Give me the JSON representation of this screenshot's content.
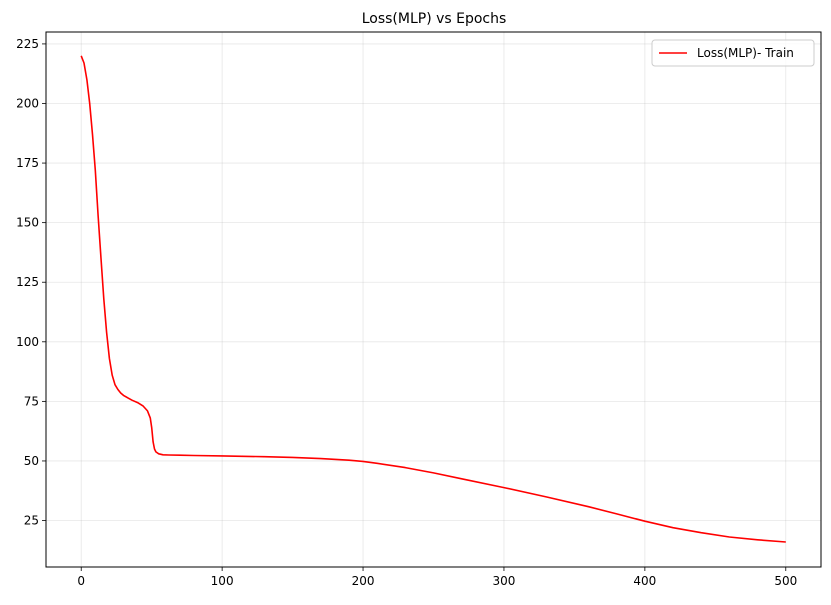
{
  "chart_data": {
    "type": "line",
    "title": "Loss(MLP) vs Epochs",
    "xlabel": "",
    "ylabel": "",
    "xlim": [
      -25,
      525
    ],
    "ylim": [
      5.5,
      230
    ],
    "xticks": [
      0,
      100,
      200,
      300,
      400,
      500
    ],
    "yticks": [
      25,
      50,
      75,
      100,
      125,
      150,
      175,
      200,
      225
    ],
    "grid": true,
    "legend_position": "top-right",
    "series": [
      {
        "name": "Loss(MLP)- Train",
        "color": "#ff0000",
        "x": [
          0,
          2,
          4,
          6,
          8,
          10,
          12,
          14,
          16,
          18,
          20,
          22,
          24,
          26,
          28,
          30,
          33,
          36,
          40,
          44,
          47,
          49,
          50,
          51,
          52,
          53,
          55,
          58,
          62,
          70,
          80,
          100,
          130,
          150,
          170,
          190,
          200,
          210,
          230,
          250,
          270,
          300,
          330,
          360,
          380,
          400,
          420,
          440,
          460,
          480,
          500
        ],
        "values": [
          220,
          217,
          210,
          200,
          187,
          172,
          153,
          135,
          118,
          104,
          93,
          86,
          82,
          80,
          78.5,
          77.5,
          76.5,
          75.5,
          74.5,
          73,
          71,
          68,
          64,
          58,
          55,
          53.8,
          53,
          52.6,
          52.5,
          52.4,
          52.3,
          52.1,
          51.8,
          51.5,
          51.0,
          50.3,
          49.8,
          49.0,
          47.2,
          45.0,
          42.5,
          38.8,
          34.9,
          30.8,
          27.8,
          24.7,
          22.0,
          19.9,
          18.1,
          16.9,
          16.0
        ]
      }
    ]
  }
}
